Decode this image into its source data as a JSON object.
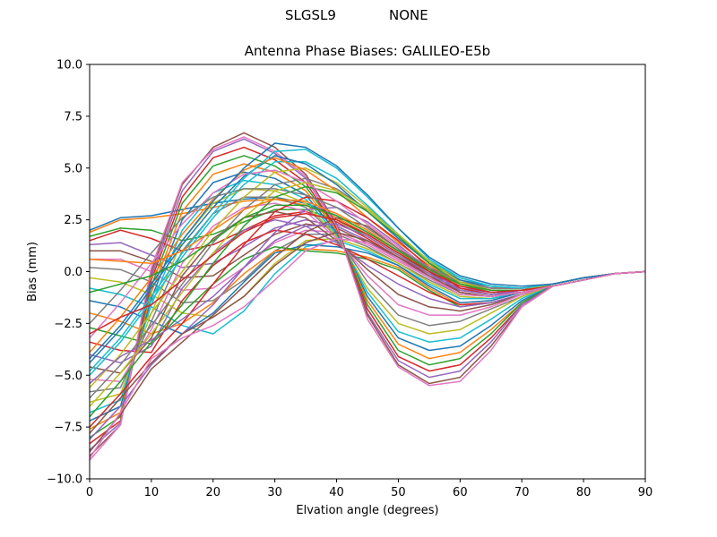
{
  "header": {
    "station": "SLGSL9",
    "radome": "NONE"
  },
  "chart_data": {
    "type": "line",
    "title": "Antenna Phase Biases: GALILEO-E5b",
    "xlabel": "Elvation angle (degrees)",
    "ylabel": "Bias (mm)",
    "xlim": [
      0,
      90
    ],
    "ylim": [
      -10,
      10
    ],
    "xticks": [
      0,
      10,
      20,
      30,
      40,
      50,
      60,
      70,
      80,
      90
    ],
    "yticks": [
      -10.0,
      -7.5,
      -5.0,
      -2.5,
      0.0,
      2.5,
      5.0,
      7.5,
      10.0
    ],
    "xtick_labels": [
      "0",
      "10",
      "20",
      "30",
      "40",
      "50",
      "60",
      "70",
      "80",
      "90"
    ],
    "ytick_labels": [
      "−10.0",
      "−7.5",
      "−5.0",
      "−2.5",
      "0.0",
      "2.5",
      "5.0",
      "7.5",
      "10.0"
    ],
    "grid": false,
    "legend": "none",
    "colors": [
      "#1f77b4",
      "#ff7f0e",
      "#2ca02c",
      "#d62728",
      "#9467bd",
      "#8c564b",
      "#e377c2",
      "#7f7f7f",
      "#bcbd22",
      "#17becf"
    ],
    "x": [
      0,
      5,
      10,
      15,
      20,
      25,
      30,
      35,
      40,
      45,
      50,
      55,
      60,
      65,
      70,
      75,
      80,
      85,
      90
    ],
    "series": [
      {
        "values": [
          2.0,
          2.6,
          2.7,
          3.0,
          3.3,
          3.5,
          3.6,
          3.3,
          2.7,
          1.9,
          1.0,
          0.2,
          -0.4,
          -0.7,
          -0.8,
          -0.7,
          -0.4,
          -0.1,
          0.0
        ]
      },
      {
        "values": [
          1.9,
          2.5,
          2.6,
          2.8,
          3.1,
          3.4,
          3.5,
          3.2,
          2.6,
          1.8,
          0.9,
          0.1,
          -0.5,
          -0.8,
          -0.8,
          -0.7,
          -0.4,
          -0.1,
          0.0
        ]
      },
      {
        "values": [
          1.7,
          2.1,
          2.0,
          1.5,
          1.8,
          2.4,
          3.0,
          3.0,
          2.5,
          1.7,
          0.8,
          0.0,
          -0.6,
          -0.9,
          -0.9,
          -0.7,
          -0.4,
          -0.1,
          0.0
        ]
      },
      {
        "values": [
          1.5,
          2.0,
          1.6,
          1.0,
          1.3,
          2.0,
          2.7,
          2.9,
          2.4,
          1.6,
          0.7,
          -0.1,
          -0.7,
          -1.0,
          -0.9,
          -0.7,
          -0.4,
          -0.1,
          0.0
        ]
      },
      {
        "values": [
          1.3,
          1.4,
          0.8,
          0.2,
          0.4,
          1.2,
          2.1,
          2.5,
          2.2,
          1.5,
          0.6,
          -0.2,
          -0.8,
          -1.0,
          -0.9,
          -0.7,
          -0.4,
          -0.1,
          0.0
        ]
      },
      {
        "values": [
          1.0,
          1.0,
          0.5,
          -0.3,
          -0.2,
          0.8,
          1.8,
          2.3,
          2.1,
          1.4,
          0.6,
          -0.3,
          -0.9,
          -1.1,
          -1.0,
          -0.7,
          -0.4,
          -0.1,
          0.0
        ]
      },
      {
        "values": [
          0.6,
          0.6,
          0.0,
          -0.9,
          -0.8,
          0.2,
          1.4,
          2.0,
          1.9,
          1.3,
          0.5,
          -0.3,
          -1.0,
          -1.2,
          -1.0,
          -0.7,
          -0.4,
          -0.1,
          0.0
        ]
      },
      {
        "values": [
          0.2,
          0.1,
          -0.5,
          -1.5,
          -1.4,
          -0.4,
          1.0,
          1.8,
          1.8,
          1.2,
          0.4,
          -0.4,
          -1.1,
          -1.2,
          -1.0,
          -0.7,
          -0.4,
          -0.1,
          0.0
        ]
      },
      {
        "values": [
          -0.3,
          -0.5,
          -1.1,
          -2.0,
          -2.2,
          -1.2,
          0.4,
          1.5,
          1.6,
          1.1,
          0.4,
          -0.5,
          -1.2,
          -1.3,
          -1.0,
          -0.7,
          -0.4,
          -0.1,
          0.0
        ]
      },
      {
        "values": [
          -0.8,
          -1.1,
          -1.7,
          -2.6,
          -3.0,
          -1.9,
          -0.1,
          1.2,
          1.5,
          1.0,
          0.3,
          -0.6,
          -1.3,
          -1.3,
          -1.0,
          -0.7,
          -0.4,
          -0.1,
          0.0
        ]
      },
      {
        "values": [
          -1.4,
          -1.7,
          -2.4,
          -3.0,
          -2.0,
          -0.5,
          0.9,
          1.3,
          1.2,
          0.9,
          0.3,
          -0.7,
          -1.5,
          -1.4,
          -1.0,
          -0.7,
          -0.4,
          -0.1,
          0.0
        ]
      },
      {
        "values": [
          -2.0,
          -2.4,
          -3.0,
          -2.5,
          -1.5,
          -0.1,
          1.0,
          1.1,
          1.0,
          0.7,
          0.2,
          -0.8,
          -1.6,
          -1.5,
          -1.1,
          -0.7,
          -0.4,
          -0.1,
          0.0
        ]
      },
      {
        "values": [
          -2.7,
          -3.1,
          -3.5,
          -2.0,
          -0.6,
          0.6,
          1.2,
          1.0,
          0.9,
          0.6,
          0.1,
          -0.9,
          -1.7,
          -1.5,
          -1.1,
          -0.7,
          -0.4,
          -0.1,
          0.0
        ]
      },
      {
        "values": [
          -3.4,
          -3.8,
          -3.9,
          -1.4,
          0.3,
          1.4,
          2.0,
          1.8,
          1.3,
          0.6,
          -0.2,
          -1.0,
          -1.6,
          -1.5,
          -1.1,
          -0.7,
          -0.4,
          -0.1,
          0.0
        ]
      },
      {
        "values": [
          -4.0,
          -4.4,
          -3.6,
          -0.8,
          0.9,
          2.0,
          2.5,
          2.2,
          1.4,
          0.3,
          -0.6,
          -1.3,
          -1.7,
          -1.5,
          -1.1,
          -0.7,
          -0.4,
          -0.1,
          0.0
        ]
      },
      {
        "values": [
          -4.6,
          -4.9,
          -3.2,
          -0.2,
          1.6,
          2.6,
          2.9,
          2.6,
          1.5,
          0.1,
          -1.1,
          -1.7,
          -1.9,
          -1.6,
          -1.1,
          -0.7,
          -0.4,
          -0.1,
          0.0
        ]
      },
      {
        "values": [
          -5.2,
          -5.3,
          -2.8,
          0.4,
          2.2,
          3.1,
          3.3,
          2.9,
          1.6,
          -0.2,
          -1.6,
          -2.1,
          -2.1,
          -1.7,
          -1.1,
          -0.7,
          -0.4,
          -0.1,
          0.0
        ]
      },
      {
        "values": [
          -5.8,
          -5.6,
          -2.4,
          1.0,
          2.8,
          3.6,
          3.6,
          3.1,
          1.7,
          -0.5,
          -2.1,
          -2.6,
          -2.4,
          -1.8,
          -1.2,
          -0.7,
          -0.4,
          -0.1,
          0.0
        ]
      },
      {
        "values": [
          -6.3,
          -5.9,
          -2.0,
          1.5,
          3.3,
          4.0,
          3.9,
          3.3,
          1.7,
          -0.8,
          -2.5,
          -3.0,
          -2.8,
          -2.0,
          -1.2,
          -0.7,
          -0.4,
          -0.1,
          0.0
        ]
      },
      {
        "values": [
          -6.8,
          -6.2,
          -1.6,
          2.0,
          3.8,
          4.4,
          4.2,
          3.5,
          1.8,
          -1.0,
          -2.9,
          -3.4,
          -3.2,
          -2.3,
          -1.3,
          -0.7,
          -0.4,
          -0.1,
          0.0
        ]
      },
      {
        "values": [
          -7.2,
          -6.5,
          -1.3,
          2.5,
          4.3,
          4.8,
          4.5,
          3.7,
          1.9,
          -1.2,
          -3.2,
          -3.8,
          -3.6,
          -2.6,
          -1.4,
          -0.7,
          -0.4,
          -0.1,
          0.0
        ]
      },
      {
        "values": [
          -7.6,
          -6.8,
          -1.0,
          2.9,
          4.7,
          5.2,
          4.8,
          3.9,
          2.0,
          -1.4,
          -3.5,
          -4.2,
          -3.9,
          -2.8,
          -1.5,
          -0.7,
          -0.4,
          -0.1,
          0.0
        ]
      },
      {
        "values": [
          -8.0,
          -7.0,
          -0.7,
          3.3,
          5.1,
          5.6,
          5.1,
          4.1,
          2.1,
          -1.6,
          -3.8,
          -4.5,
          -4.2,
          -3.0,
          -1.5,
          -0.7,
          -0.4,
          -0.1,
          0.0
        ]
      },
      {
        "values": [
          -8.3,
          -7.2,
          -0.4,
          3.6,
          5.5,
          6.0,
          5.4,
          4.3,
          2.1,
          -1.8,
          -4.1,
          -4.8,
          -4.5,
          -3.2,
          -1.6,
          -0.7,
          -0.4,
          -0.1,
          0.0
        ]
      },
      {
        "values": [
          -8.6,
          -7.3,
          -0.2,
          3.9,
          5.8,
          6.4,
          5.7,
          4.5,
          2.2,
          -2.0,
          -4.3,
          -5.1,
          -4.8,
          -3.4,
          -1.6,
          -0.7,
          -0.4,
          -0.1,
          0.0
        ]
      },
      {
        "values": [
          -8.9,
          -7.4,
          0.0,
          4.2,
          6.0,
          6.7,
          6.0,
          4.7,
          2.3,
          -2.1,
          -4.5,
          -5.4,
          -5.1,
          -3.6,
          -1.7,
          -0.7,
          -0.4,
          -0.1,
          0.0
        ]
      },
      {
        "values": [
          -9.1,
          -7.4,
          0.2,
          4.3,
          5.9,
          6.5,
          5.8,
          4.6,
          2.2,
          -2.3,
          -4.6,
          -5.5,
          -5.3,
          -3.8,
          -1.7,
          -0.7,
          -0.4,
          -0.1,
          0.0
        ]
      },
      {
        "values": [
          -6.1,
          -4.5,
          -2.6,
          -0.6,
          1.4,
          3.0,
          4.2,
          4.5,
          4.0,
          3.0,
          1.8,
          0.5,
          -0.5,
          -0.9,
          -0.9,
          -0.6,
          -0.3,
          -0.1,
          0.0
        ]
      },
      {
        "values": [
          -5.6,
          -4.0,
          -2.0,
          0.0,
          2.0,
          3.6,
          4.8,
          5.0,
          4.3,
          3.1,
          1.8,
          0.5,
          -0.4,
          -0.8,
          -0.8,
          -0.6,
          -0.3,
          -0.1,
          0.0
        ]
      },
      {
        "values": [
          -5.0,
          -3.4,
          -1.4,
          0.7,
          2.6,
          4.2,
          5.3,
          5.3,
          4.5,
          3.2,
          1.8,
          0.5,
          -0.3,
          -0.7,
          -0.8,
          -0.6,
          -0.3,
          -0.1,
          0.0
        ]
      },
      {
        "values": [
          -4.4,
          -2.8,
          -0.8,
          1.3,
          3.1,
          4.6,
          5.6,
          5.2,
          4.2,
          2.9,
          1.6,
          0.4,
          -0.4,
          -0.8,
          -0.8,
          -0.6,
          -0.3,
          -0.1,
          0.0
        ]
      },
      {
        "values": [
          -3.9,
          -2.2,
          -0.3,
          1.8,
          3.5,
          4.9,
          5.5,
          4.9,
          3.9,
          2.6,
          1.4,
          0.3,
          -0.5,
          -0.8,
          -0.8,
          -0.6,
          -0.3,
          -0.1,
          0.0
        ]
      },
      {
        "values": [
          -7.0,
          -5.3,
          -3.4,
          -1.6,
          0.4,
          2.2,
          3.6,
          4.1,
          3.8,
          2.9,
          1.7,
          0.4,
          -0.6,
          -1.0,
          -0.9,
          -0.6,
          -0.3,
          -0.1,
          0.0
        ]
      },
      {
        "values": [
          -7.5,
          -5.9,
          -4.1,
          -2.5,
          -0.6,
          1.3,
          2.9,
          3.6,
          3.4,
          2.6,
          1.5,
          0.2,
          -0.8,
          -1.1,
          -0.9,
          -0.6,
          -0.3,
          -0.1,
          0.0
        ]
      },
      {
        "values": [
          -8.1,
          -6.5,
          -4.5,
          -3.0,
          -1.6,
          0.2,
          1.9,
          3.0,
          3.1,
          2.4,
          1.3,
          0.1,
          -0.9,
          -1.1,
          -0.9,
          -0.6,
          -0.3,
          -0.1,
          0.0
        ]
      },
      {
        "values": [
          -8.7,
          -6.9,
          -4.7,
          -3.4,
          -2.1,
          -0.7,
          0.7,
          1.9,
          2.6,
          2.2,
          1.1,
          0.0,
          -1.0,
          -1.2,
          -1.0,
          -0.6,
          -0.3,
          -0.1,
          0.0
        ]
      },
      {
        "values": [
          -3.2,
          -1.5,
          0.4,
          2.3,
          3.8,
          4.7,
          4.9,
          4.3,
          3.4,
          2.3,
          1.2,
          0.2,
          -0.5,
          -0.8,
          -0.8,
          -0.6,
          -0.3,
          -0.1,
          0.0
        ]
      },
      {
        "values": [
          -2.5,
          -0.9,
          0.9,
          2.6,
          3.6,
          4.0,
          4.0,
          3.7,
          3.1,
          2.1,
          1.1,
          0.2,
          -0.5,
          -0.8,
          -0.8,
          -0.6,
          -0.3,
          -0.1,
          0.0
        ]
      },
      {
        "values": [
          -6.5,
          -4.9,
          -3.0,
          -1.0,
          0.9,
          2.6,
          3.9,
          4.3,
          3.9,
          3.0,
          1.8,
          0.5,
          -0.5,
          -0.9,
          -0.9,
          -0.6,
          -0.3,
          -0.1,
          0.0
        ]
      },
      {
        "values": [
          -4.8,
          -3.2,
          -1.2,
          0.9,
          2.8,
          4.5,
          5.8,
          5.9,
          5.0,
          3.6,
          2.1,
          0.6,
          -0.3,
          -0.7,
          -0.8,
          -0.6,
          -0.3,
          -0.1,
          0.0
        ]
      },
      {
        "values": [
          -4.2,
          -2.6,
          -0.6,
          1.5,
          3.4,
          5.0,
          6.2,
          6.0,
          5.1,
          3.7,
          2.1,
          0.7,
          -0.2,
          -0.6,
          -0.7,
          -0.6,
          -0.3,
          -0.1,
          0.0
        ]
      },
      {
        "values": [
          0.6,
          0.5,
          0.4,
          1.0,
          2.0,
          3.0,
          3.5,
          3.4,
          2.8,
          2.0,
          1.0,
          0.1,
          -0.6,
          -0.9,
          -0.9,
          -0.7,
          -0.4,
          -0.1,
          0.0
        ]
      },
      {
        "values": [
          -1.0,
          -0.6,
          -0.2,
          0.5,
          1.5,
          2.6,
          3.2,
          3.2,
          2.7,
          1.9,
          1.0,
          0.1,
          -0.6,
          -0.9,
          -0.9,
          -0.7,
          -0.4,
          -0.1,
          0.0
        ]
      },
      {
        "values": [
          -3.0,
          -2.2,
          -1.6,
          -0.4,
          0.8,
          1.9,
          2.6,
          2.8,
          2.5,
          1.8,
          0.9,
          0.0,
          -0.7,
          -1.0,
          -0.9,
          -0.7,
          -0.4,
          -0.1,
          0.0
        ]
      },
      {
        "values": [
          -5.4,
          -4.1,
          -3.3,
          -2.3,
          -1.2,
          0.2,
          1.5,
          2.2,
          2.3,
          1.7,
          0.8,
          -0.1,
          -0.9,
          -1.1,
          -1.0,
          -0.7,
          -0.4,
          -0.1,
          0.0
        ]
      },
      {
        "values": [
          -7.8,
          -6.1,
          -4.4,
          -3.0,
          -2.2,
          -1.2,
          0.3,
          1.4,
          1.9,
          1.5,
          0.7,
          -0.2,
          -1.0,
          -1.2,
          -1.0,
          -0.7,
          -0.4,
          -0.1,
          0.0
        ]
      },
      {
        "values": [
          -9.0,
          -6.8,
          -4.2,
          -3.2,
          -2.6,
          -1.7,
          -0.4,
          1.0,
          1.6,
          1.4,
          0.6,
          -0.3,
          -1.1,
          -1.2,
          -1.0,
          -0.7,
          -0.4,
          -0.1,
          0.0
        ]
      }
    ]
  }
}
